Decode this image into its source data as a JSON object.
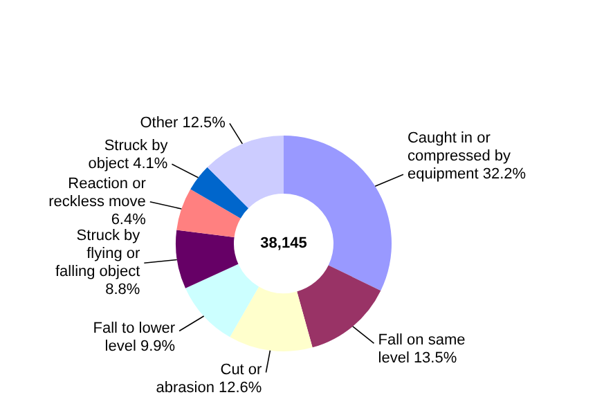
{
  "chart_data": {
    "type": "donut",
    "categories": [
      "Caught in or compressed by equipment",
      "Fall on same level",
      "Cut or abrasion",
      "Fall to lower level",
      "Struck by flying or falling object",
      "Reaction or reckless move",
      "Struck by object",
      "Other"
    ],
    "values": [
      32.2,
      13.5,
      12.6,
      9.9,
      8.8,
      6.4,
      4.1,
      12.5
    ],
    "colors": [
      "#9999ff",
      "#993366",
      "#ffffcc",
      "#ccffff",
      "#660066",
      "#ff8080",
      "#0066cc",
      "#ccccff"
    ],
    "value_labels": [
      "32.2%",
      "13.5%",
      "12.6%",
      "9.9%",
      "8.8%",
      "6.4%",
      "4.1%",
      "12.5%"
    ],
    "annotations": [
      "38,145"
    ]
  }
}
